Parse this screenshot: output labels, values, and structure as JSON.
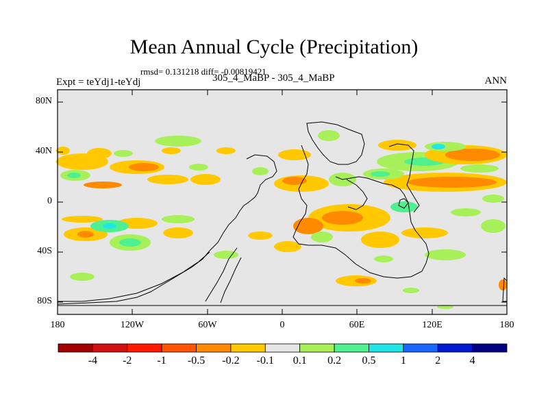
{
  "title": "Mean Annual Cycle (Precipitation)",
  "stats": "rmsd= 0.131218 diff= -0.00819421",
  "left_label": "Expt = teYdj1-teYdj",
  "center_label": "305_4_MaBP - 305_4_MaBP",
  "right_label": "ANN",
  "map": {
    "lat_ticks": [
      "80N",
      "40N",
      "0",
      "40S",
      "80S"
    ],
    "lon_ticks": [
      "180",
      "120W",
      "60W",
      "0",
      "60E",
      "120E",
      "180"
    ]
  },
  "colorbar": {
    "labels": [
      "-4",
      "-2",
      "-1",
      "-0.5",
      "-0.2",
      "-0.1",
      "0.1",
      "0.2",
      "0.5",
      "1",
      "2",
      "4"
    ],
    "colors": [
      "#a00000",
      "#d11010",
      "#ff1a00",
      "#ff5500",
      "#ff8a00",
      "#ffc800",
      "#e6e6e6",
      "#a8f05a",
      "#4ef090",
      "#22e6e6",
      "#1a66ff",
      "#0018d0",
      "#000080"
    ]
  },
  "colors": {
    "ocean": "#e6e6e6",
    "pos_small": "#a8f05a",
    "pos_mid": "#4ef090",
    "pos_big": "#22e6e6",
    "neg_small": "#ffc800",
    "neg_mid": "#ff8a00"
  }
}
